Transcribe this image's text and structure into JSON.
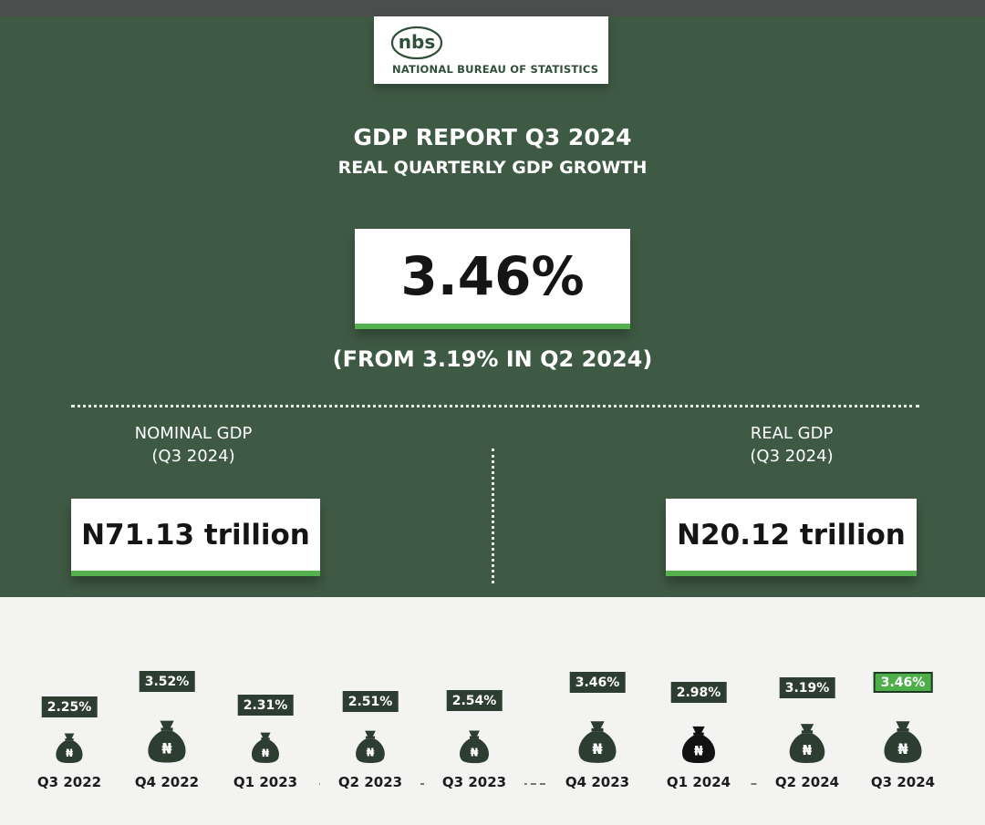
{
  "header": {
    "logo_alt_text": "nbs",
    "agency_name": "NATIONAL BUREAU OF STATISTICS",
    "title": "GDP REPORT Q3 2024",
    "subtitle": "REAL QUARTERLY GDP GROWTH"
  },
  "headline": {
    "value": "3.46%",
    "comparison": "(FROM 3.19% IN Q2 2024)"
  },
  "nominal_gdp": {
    "label": "NOMINAL GDP",
    "period": "(Q3 2024)",
    "value": "N71.13 trillion"
  },
  "real_gdp": {
    "label": "REAL GDP",
    "period": "(Q3 2024)",
    "value": "N20.12 trillion"
  },
  "colors": {
    "panel_green": "#3f5a44",
    "accent_green": "#55b04e",
    "bag_dark": "#2d3d31",
    "bag_black": "#121212"
  },
  "icons": {
    "money_bag": "money-bag-icon",
    "currency": "naira-sign"
  },
  "chart_data": {
    "type": "bar",
    "title": "",
    "xlabel": "",
    "ylabel": "",
    "categories": [
      "Q3 2022",
      "Q4 2022",
      "Q1 2023",
      "Q2 2023",
      "Q3 2023",
      "Q4 2023",
      "Q1 2024",
      "Q2 2024",
      "Q3 2024"
    ],
    "values": [
      2.25,
      3.52,
      2.31,
      2.51,
      2.54,
      3.46,
      2.98,
      3.19,
      3.46
    ],
    "labels": [
      "2.25%",
      "3.52%",
      "2.31%",
      "2.51%",
      "2.54%",
      "3.46%",
      "2.98%",
      "3.19%",
      "3.46%"
    ],
    "ylim": [
      2.0,
      3.6
    ],
    "highlight": "Q3 2024",
    "currency_symbol": "₦"
  }
}
